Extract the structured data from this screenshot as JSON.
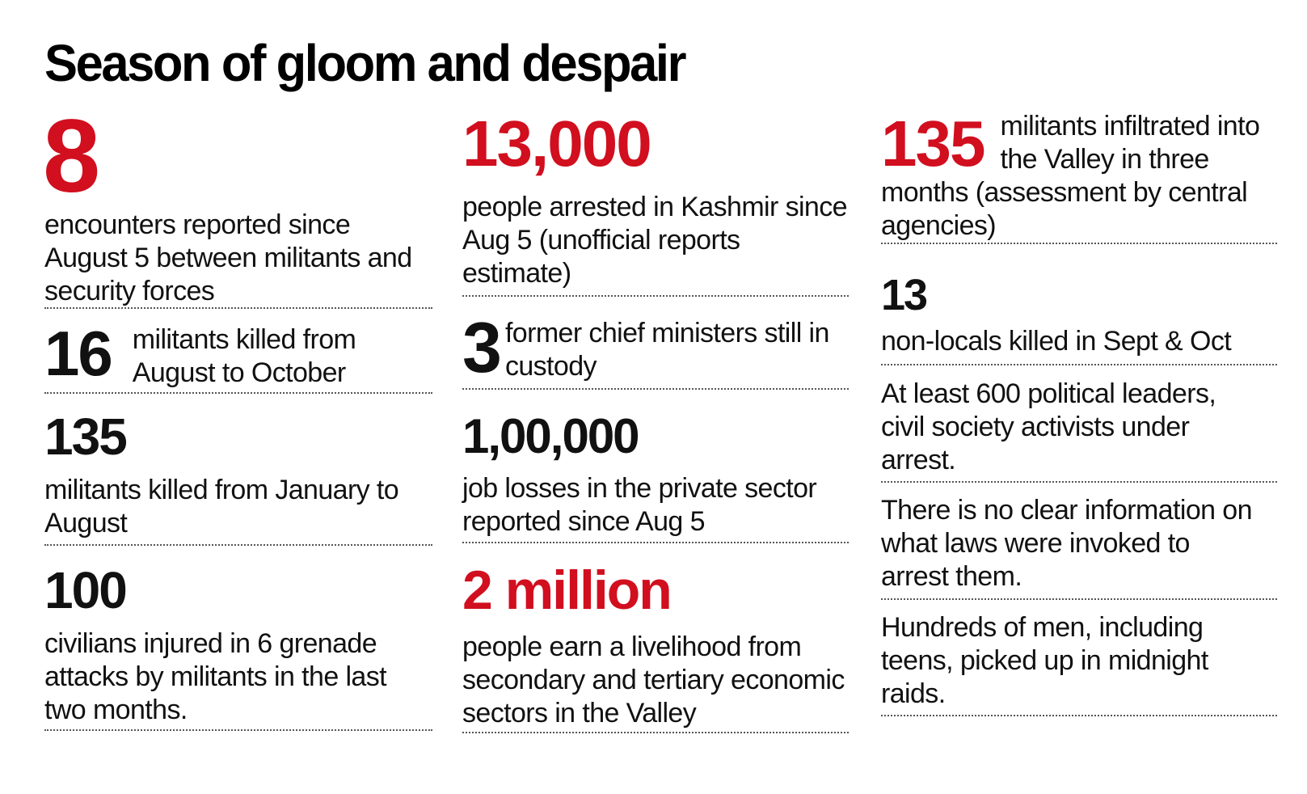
{
  "title": "Season of gloom and despair",
  "colors": {
    "accent_red": "#d10f1f",
    "text": "#111111",
    "rule": "#555555"
  },
  "columns": [
    [
      {
        "number": "8",
        "text": "encounters reported since August 5 between militants and security forces"
      },
      {
        "number": "16",
        "text": "militants killed from August to October"
      },
      {
        "number": "135",
        "text": "militants killed from January to August"
      },
      {
        "number": "100",
        "text": "civilians injured in 6 grenade attacks by militants in the last two months."
      }
    ],
    [
      {
        "number": "13,000",
        "text": "people arrested in Kashmir since Aug 5 (unofficial reports estimate)"
      },
      {
        "number": "3",
        "text": "former chief ministers still in custody"
      },
      {
        "number": "1,00,000",
        "text": "job losses in the private sector reported since Aug 5"
      },
      {
        "number": "2 million",
        "text": "people earn a livelihood from secondary and tertiary economic sectors in the Valley"
      }
    ],
    [
      {
        "number": "135",
        "text": "militants infiltrated into the Valley in three months (assessment by central agencies)"
      },
      {
        "number": "13",
        "text": "non-locals killed in Sept & Oct"
      },
      {
        "text": "At least 600 political leaders, civil society activists under arrest."
      },
      {
        "text": "There is no clear information on what laws were invoked to arrest them."
      },
      {
        "text": "Hundreds of men, including teens, picked up in midnight raids."
      }
    ]
  ]
}
